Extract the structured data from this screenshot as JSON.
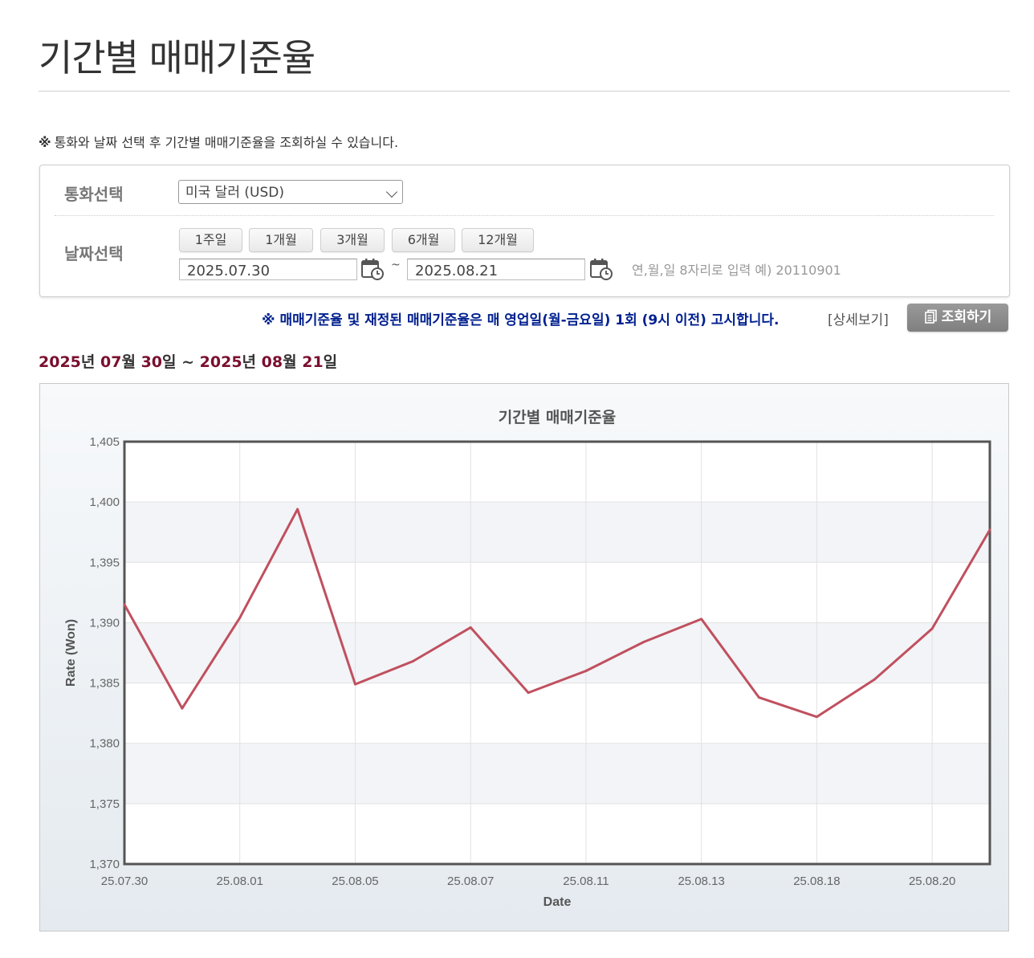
{
  "page": {
    "title": "기간별 매매기준율",
    "notice_mark": "※",
    "notice_text": "통화와 날짜 선택 후 기간별 매매기준율을 조회하실 수 있습니다."
  },
  "form": {
    "currency_label": "통화선택",
    "currency_value": "미국 달러 (USD)",
    "date_label": "날짜선택",
    "period_buttons": [
      "1주일",
      "1개월",
      "3개월",
      "6개월",
      "12개월"
    ],
    "start_date": "2025.07.30",
    "tilde": "~",
    "end_date": "2025.08.21",
    "date_hint": "연,월,일 8자리로 입력 예) 20110901"
  },
  "announce": {
    "text": "※ 매매기준율 및 재정된 매매기준율은 매 영업일(월-금요일) 1회 (9시 이전) 고시합니다.",
    "detail_link": "[상세보기]",
    "query_button": "조회하기"
  },
  "range": {
    "y1": "2025",
    "l1": "년 ",
    "m1": "07",
    "l2": "월 ",
    "d1": "30",
    "l3": "일 ~ ",
    "y2": "2025",
    "l4": "년 ",
    "m2": "08",
    "l5": "월 ",
    "d2": "21",
    "l6": "일"
  },
  "colors": {
    "line": "#c0505f",
    "range_highlight": "#7a0f2e",
    "announce": "#00208f"
  },
  "chart_data": {
    "type": "line",
    "title": "기간별 매매기준율",
    "xlabel": "Date",
    "ylabel": "Rate (Won)",
    "ylim": [
      1370,
      1405
    ],
    "yticks": [
      "1,370",
      "1,375",
      "1,380",
      "1,385",
      "1,390",
      "1,395",
      "1,400",
      "1,405"
    ],
    "x_tick_labels": [
      "25.07.30",
      "25.08.01",
      "25.08.05",
      "25.08.07",
      "25.08.11",
      "25.08.13",
      "25.08.18",
      "25.08.20"
    ],
    "x_tick_indices": [
      0,
      2,
      4,
      6,
      8,
      10,
      12,
      14
    ],
    "x": [
      "25.07.30",
      "25.07.31",
      "25.08.01",
      "25.08.04",
      "25.08.05",
      "25.08.06",
      "25.08.07",
      "25.08.08",
      "25.08.11",
      "25.08.12",
      "25.08.13",
      "25.08.14",
      "25.08.18",
      "25.08.19",
      "25.08.20",
      "25.08.21"
    ],
    "series": [
      {
        "values": [
          1391.5,
          1382.9,
          1390.4,
          1399.4,
          1384.9,
          1386.8,
          1389.6,
          1384.2,
          1386.0,
          1388.4,
          1390.3,
          1383.8,
          1382.2,
          1385.3,
          1389.5,
          1397.7
        ]
      }
    ],
    "grid": true,
    "legend": "none"
  }
}
